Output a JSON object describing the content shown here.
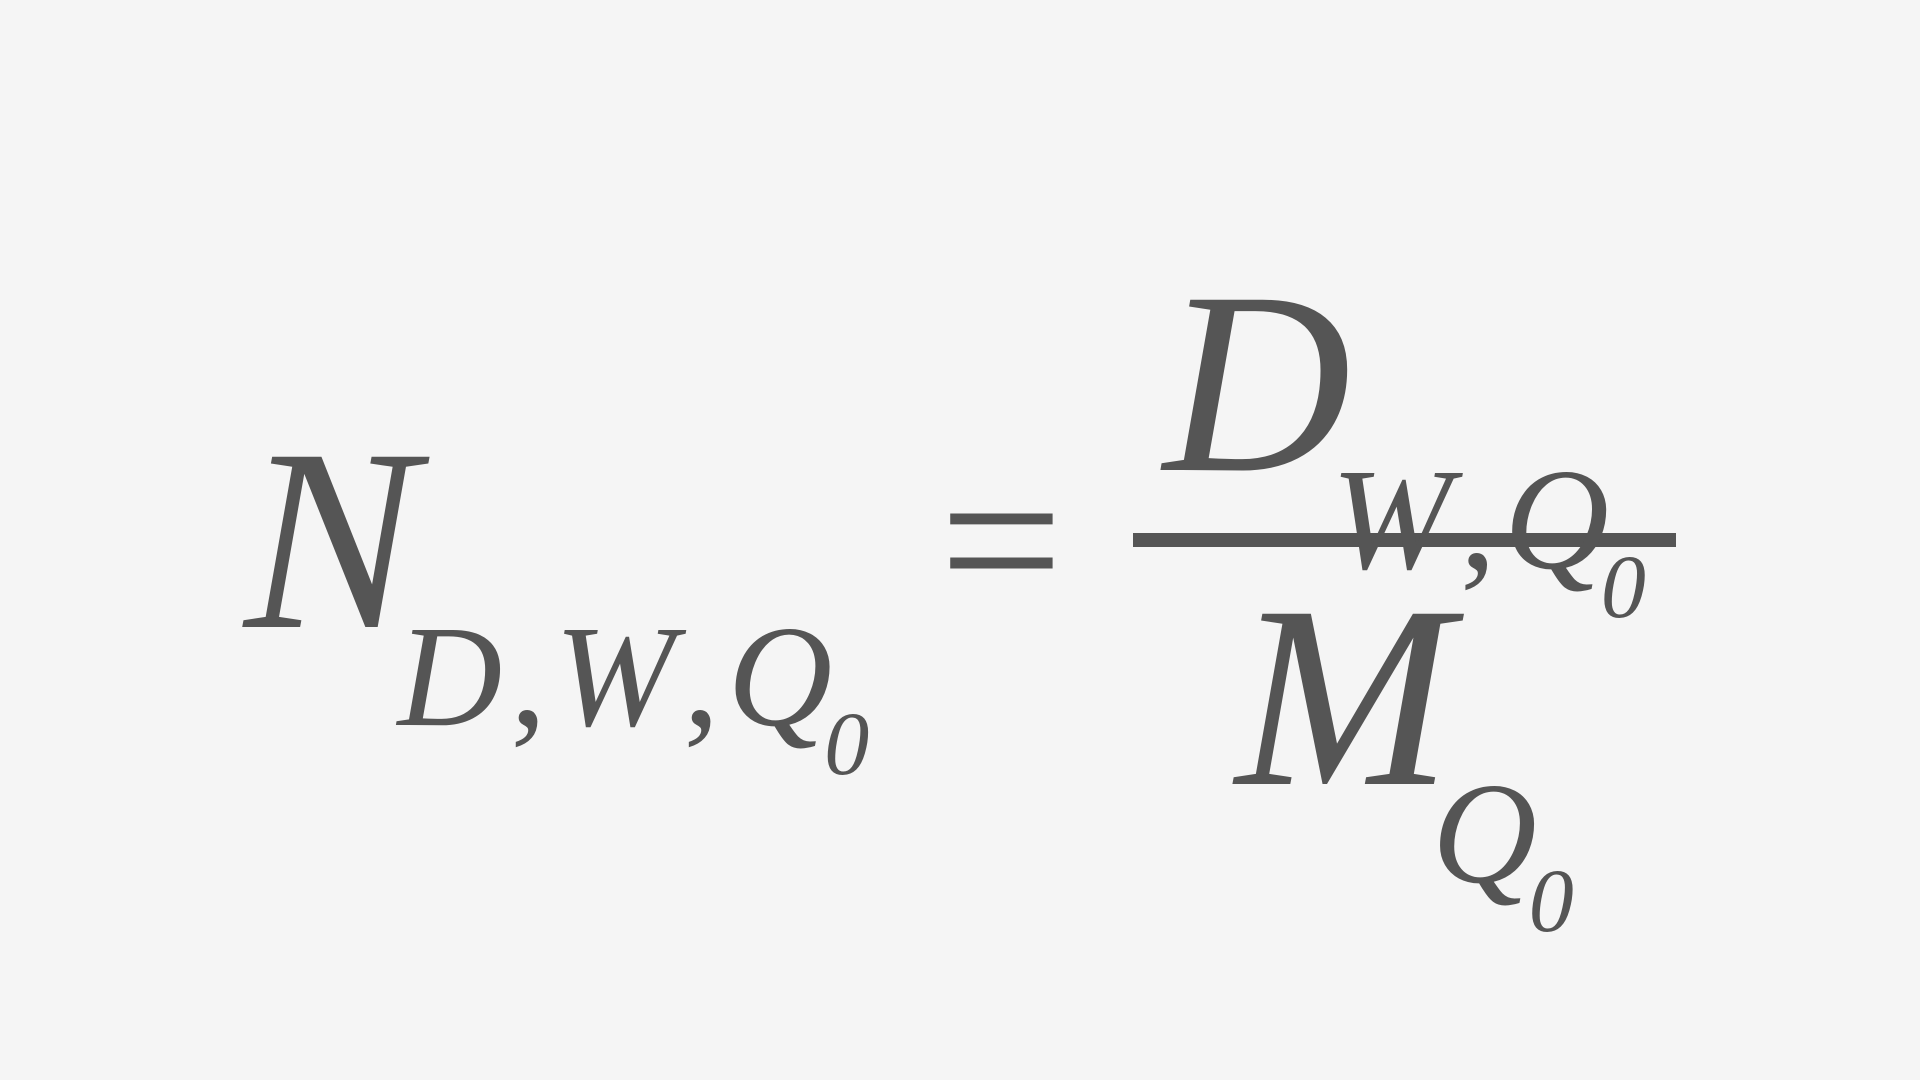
{
  "equation": {
    "type": "math-formula",
    "background_color": "#f5f5f5",
    "text_color": "#555555",
    "font_family": "Georgia, Times New Roman, serif",
    "main_fontsize": 260,
    "sub_fontsize": 145,
    "subsub_fontsize": 90,
    "equals_fontsize": 220,
    "frac_bar_height": 14,
    "lhs": {
      "variable": "N",
      "subscripts": [
        {
          "letter": "D",
          "comma_after": ","
        },
        {
          "letter": "W",
          "comma_after": ","
        },
        {
          "letter": "Q",
          "subsub": "0"
        }
      ]
    },
    "equals": "=",
    "rhs": {
      "numerator": {
        "variable": "D",
        "subscripts": [
          {
            "letter": "W",
            "comma_after": ","
          },
          {
            "letter": "Q",
            "subsub": "0"
          }
        ]
      },
      "denominator": {
        "variable": "M",
        "subscripts": [
          {
            "letter": "Q",
            "subsub": "0"
          }
        ]
      }
    }
  }
}
